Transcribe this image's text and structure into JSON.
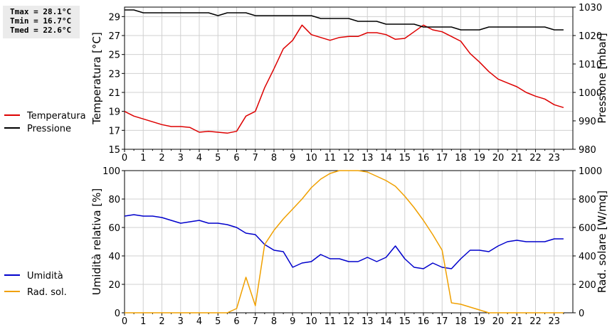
{
  "stats": {
    "tmax": "Tmax = 28.1°C",
    "tmin": "Tmin = 16.7°C",
    "tmed": "Tmed = 22.6°C"
  },
  "chart_data": [
    {
      "type": "line",
      "ylabel": "Temperatura [°C]",
      "y2label": "Pressione [mbar]",
      "ylim": [
        15,
        30
      ],
      "yticks": [
        15,
        17,
        19,
        21,
        23,
        25,
        27,
        29
      ],
      "y2lim": [
        980,
        1030
      ],
      "y2ticks": [
        980,
        990,
        1000,
        1010,
        1020,
        1030
      ],
      "xlim": [
        0,
        24
      ],
      "xticks": [
        0,
        1,
        2,
        3,
        4,
        5,
        6,
        7,
        8,
        9,
        10,
        11,
        12,
        13,
        14,
        15,
        16,
        17,
        18,
        19,
        20,
        21,
        22,
        23
      ],
      "grid": true,
      "legend_position": "left",
      "series": [
        {
          "name": "Temperatura",
          "axis": "left",
          "color": "#dd0000",
          "points": [
            [
              0,
              19.0
            ],
            [
              0.5,
              18.5
            ],
            [
              1,
              18.2
            ],
            [
              1.5,
              17.9
            ],
            [
              2,
              17.6
            ],
            [
              2.5,
              17.4
            ],
            [
              3,
              17.4
            ],
            [
              3.5,
              17.3
            ],
            [
              4,
              16.8
            ],
            [
              4.5,
              16.9
            ],
            [
              5,
              16.8
            ],
            [
              5.5,
              16.7
            ],
            [
              6,
              16.9
            ],
            [
              6.5,
              18.5
            ],
            [
              7,
              19.0
            ],
            [
              7.5,
              21.5
            ],
            [
              8,
              23.5
            ],
            [
              8.5,
              25.6
            ],
            [
              9,
              26.5
            ],
            [
              9.5,
              28.1
            ],
            [
              10,
              27.1
            ],
            [
              10.5,
              26.8
            ],
            [
              11,
              26.5
            ],
            [
              11.5,
              26.8
            ],
            [
              12,
              26.9
            ],
            [
              12.5,
              26.9
            ],
            [
              13,
              27.3
            ],
            [
              13.5,
              27.3
            ],
            [
              14,
              27.1
            ],
            [
              14.5,
              26.6
            ],
            [
              15,
              26.7
            ],
            [
              15.5,
              27.4
            ],
            [
              16,
              28.1
            ],
            [
              16.5,
              27.6
            ],
            [
              17,
              27.4
            ],
            [
              17.5,
              26.9
            ],
            [
              18,
              26.4
            ],
            [
              18.5,
              25.1
            ],
            [
              19,
              24.2
            ],
            [
              19.5,
              23.2
            ],
            [
              20,
              22.4
            ],
            [
              20.5,
              22.0
            ],
            [
              21,
              21.6
            ],
            [
              21.5,
              21.0
            ],
            [
              22,
              20.6
            ],
            [
              22.5,
              20.3
            ],
            [
              23,
              19.7
            ],
            [
              23.5,
              19.4
            ]
          ]
        },
        {
          "name": "Pressione",
          "axis": "right",
          "color": "#000000",
          "points": [
            [
              0,
              1029
            ],
            [
              0.5,
              1029
            ],
            [
              1,
              1028
            ],
            [
              1.5,
              1028
            ],
            [
              2,
              1028
            ],
            [
              2.5,
              1028
            ],
            [
              3,
              1028
            ],
            [
              3.5,
              1028
            ],
            [
              4,
              1028
            ],
            [
              4.5,
              1028
            ],
            [
              5,
              1027
            ],
            [
              5.5,
              1028
            ],
            [
              6,
              1028
            ],
            [
              6.5,
              1028
            ],
            [
              7,
              1027
            ],
            [
              7.5,
              1027
            ],
            [
              8,
              1027
            ],
            [
              8.5,
              1027
            ],
            [
              9,
              1027
            ],
            [
              9.5,
              1027
            ],
            [
              10,
              1027
            ],
            [
              10.5,
              1026
            ],
            [
              11,
              1026
            ],
            [
              11.5,
              1026
            ],
            [
              12,
              1026
            ],
            [
              12.5,
              1025
            ],
            [
              13,
              1025
            ],
            [
              13.5,
              1025
            ],
            [
              14,
              1024
            ],
            [
              14.5,
              1024
            ],
            [
              15,
              1024
            ],
            [
              15.5,
              1024
            ],
            [
              16,
              1023
            ],
            [
              16.5,
              1023
            ],
            [
              17,
              1023
            ],
            [
              17.5,
              1023
            ],
            [
              18,
              1022
            ],
            [
              18.5,
              1022
            ],
            [
              19,
              1022
            ],
            [
              19.5,
              1023
            ],
            [
              20,
              1023
            ],
            [
              20.5,
              1023
            ],
            [
              21,
              1023
            ],
            [
              21.5,
              1023
            ],
            [
              22,
              1023
            ],
            [
              22.5,
              1023
            ],
            [
              23,
              1022
            ],
            [
              23.5,
              1022
            ]
          ]
        }
      ]
    },
    {
      "type": "line",
      "ylabel": "Umidità relativa [%]",
      "y2label": "Rad. solare [W/mq]",
      "ylim": [
        0,
        100
      ],
      "yticks": [
        0,
        20,
        40,
        60,
        80,
        100
      ],
      "y2lim": [
        0,
        1000
      ],
      "y2ticks": [
        0,
        200,
        400,
        600,
        800,
        1000
      ],
      "xlim": [
        0,
        24
      ],
      "xticks": [
        0,
        1,
        2,
        3,
        4,
        5,
        6,
        7,
        8,
        9,
        10,
        11,
        12,
        13,
        14,
        15,
        16,
        17,
        18,
        19,
        20,
        21,
        22,
        23
      ],
      "grid": true,
      "legend_position": "left",
      "series": [
        {
          "name": "Umidità",
          "axis": "left",
          "color": "#0000cc",
          "points": [
            [
              0,
              68
            ],
            [
              0.5,
              69
            ],
            [
              1,
              68
            ],
            [
              1.5,
              68
            ],
            [
              2,
              67
            ],
            [
              2.5,
              65
            ],
            [
              3,
              63
            ],
            [
              3.5,
              64
            ],
            [
              4,
              65
            ],
            [
              4.5,
              63
            ],
            [
              5,
              63
            ],
            [
              5.5,
              62
            ],
            [
              6,
              60
            ],
            [
              6.5,
              56
            ],
            [
              7,
              55
            ],
            [
              7.5,
              48
            ],
            [
              8,
              44
            ],
            [
              8.5,
              43
            ],
            [
              9,
              32
            ],
            [
              9.5,
              35
            ],
            [
              10,
              36
            ],
            [
              10.5,
              41
            ],
            [
              11,
              38
            ],
            [
              11.5,
              38
            ],
            [
              12,
              36
            ],
            [
              12.5,
              36
            ],
            [
              13,
              39
            ],
            [
              13.5,
              36
            ],
            [
              14,
              39
            ],
            [
              14.5,
              47
            ],
            [
              15,
              38
            ],
            [
              15.5,
              32
            ],
            [
              16,
              31
            ],
            [
              16.5,
              35
            ],
            [
              17,
              32
            ],
            [
              17.5,
              31
            ],
            [
              18,
              38
            ],
            [
              18.5,
              44
            ],
            [
              19,
              44
            ],
            [
              19.5,
              43
            ],
            [
              20,
              47
            ],
            [
              20.5,
              50
            ],
            [
              21,
              51
            ],
            [
              21.5,
              50
            ],
            [
              22,
              50
            ],
            [
              22.5,
              50
            ],
            [
              23,
              52
            ],
            [
              23.5,
              52
            ]
          ]
        },
        {
          "name": "Rad. sol.",
          "axis": "right",
          "color": "#f0a000",
          "points": [
            [
              0,
              0
            ],
            [
              0.5,
              0
            ],
            [
              1,
              0
            ],
            [
              1.5,
              0
            ],
            [
              2,
              0
            ],
            [
              2.5,
              0
            ],
            [
              3,
              0
            ],
            [
              3.5,
              0
            ],
            [
              4,
              0
            ],
            [
              4.5,
              0
            ],
            [
              5,
              0
            ],
            [
              5.5,
              0
            ],
            [
              6,
              30
            ],
            [
              6.5,
              250
            ],
            [
              7,
              50
            ],
            [
              7.5,
              480
            ],
            [
              8,
              580
            ],
            [
              8.5,
              660
            ],
            [
              9,
              730
            ],
            [
              9.5,
              800
            ],
            [
              10,
              880
            ],
            [
              10.5,
              940
            ],
            [
              11,
              980
            ],
            [
              11.5,
              1000
            ],
            [
              12,
              1000
            ],
            [
              12.5,
              1000
            ],
            [
              13,
              990
            ],
            [
              13.5,
              960
            ],
            [
              14,
              930
            ],
            [
              14.5,
              890
            ],
            [
              15,
              820
            ],
            [
              15.5,
              740
            ],
            [
              16,
              650
            ],
            [
              16.5,
              550
            ],
            [
              17,
              440
            ],
            [
              17.5,
              70
            ],
            [
              18,
              60
            ],
            [
              18.5,
              40
            ],
            [
              19,
              20
            ],
            [
              19.5,
              0
            ],
            [
              20,
              0
            ],
            [
              20.5,
              0
            ],
            [
              21,
              0
            ],
            [
              21.5,
              0
            ],
            [
              22,
              0
            ],
            [
              22.5,
              0
            ],
            [
              23,
              0
            ],
            [
              23.5,
              0
            ]
          ]
        }
      ]
    }
  ]
}
